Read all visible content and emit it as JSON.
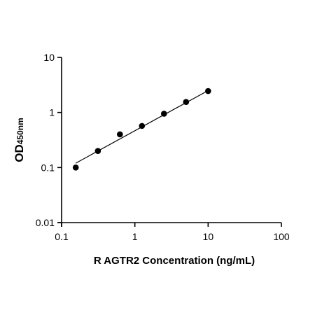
{
  "chart_data": {
    "type": "scatter",
    "title": "",
    "xlabel": "R AGTR2 Concentration (ng/mL)",
    "ylabel_main": "OD",
    "ylabel_sub": "450nm",
    "x_scale": "log",
    "y_scale": "log",
    "xlim": [
      0.1,
      100
    ],
    "ylim": [
      0.01,
      10
    ],
    "x_ticks": [
      0.1,
      1,
      10,
      100
    ],
    "x_tick_labels": [
      "0.1",
      "1",
      "10",
      "100"
    ],
    "y_ticks": [
      0.01,
      0.1,
      1,
      10
    ],
    "y_tick_labels": [
      "0.01",
      "0.1",
      "1",
      "10"
    ],
    "grid": false,
    "series": [
      {
        "points": [
          {
            "x": 0.156,
            "y": 0.1
          },
          {
            "x": 0.313,
            "y": 0.2
          },
          {
            "x": 0.625,
            "y": 0.4
          },
          {
            "x": 1.25,
            "y": 0.57
          },
          {
            "x": 2.5,
            "y": 0.95
          },
          {
            "x": 5,
            "y": 1.55
          },
          {
            "x": 10,
            "y": 2.45
          }
        ]
      }
    ],
    "fit_line": [
      {
        "x": 0.156,
        "y": 0.12
      },
      {
        "x": 10,
        "y": 2.5
      }
    ]
  }
}
